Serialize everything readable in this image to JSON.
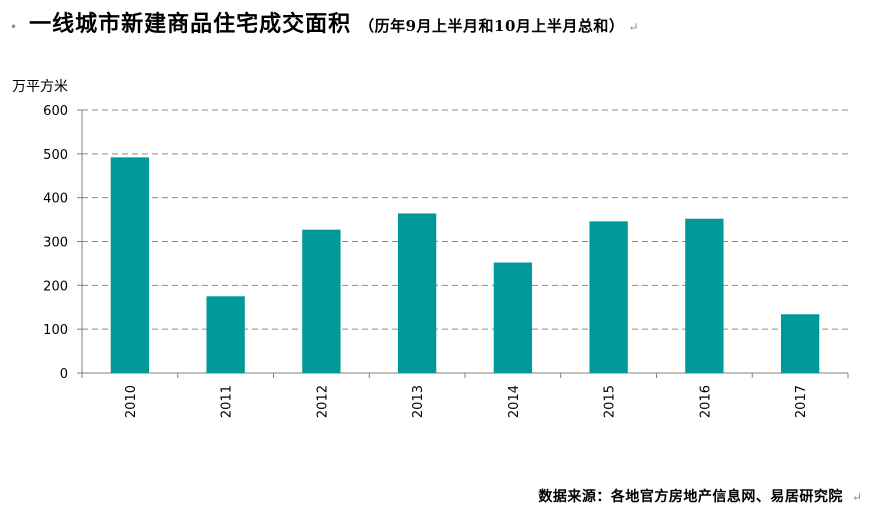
{
  "header": {
    "bullet": "•",
    "title": "一线城市新建商品住宅成交面积",
    "subtitle": "（历年9月上半月和10月上半月总和）",
    "para_mark": "↵"
  },
  "footer": {
    "source": "数据来源：各地官方房地产信息网、易居研究院",
    "para_mark": "↵"
  },
  "chart_data": {
    "type": "bar",
    "categories": [
      "2010",
      "2011",
      "2012",
      "2013",
      "2014",
      "2015",
      "2016",
      "2017"
    ],
    "values": [
      492,
      175,
      327,
      364,
      252,
      346,
      352,
      134
    ],
    "ylabel": "万平方米",
    "ylim": [
      0,
      600
    ],
    "yticks": [
      0,
      100,
      200,
      300,
      400,
      500,
      600
    ],
    "grid": true,
    "legend": "none",
    "bar_color": "#009999",
    "grid_color": "#8c8c8c"
  }
}
